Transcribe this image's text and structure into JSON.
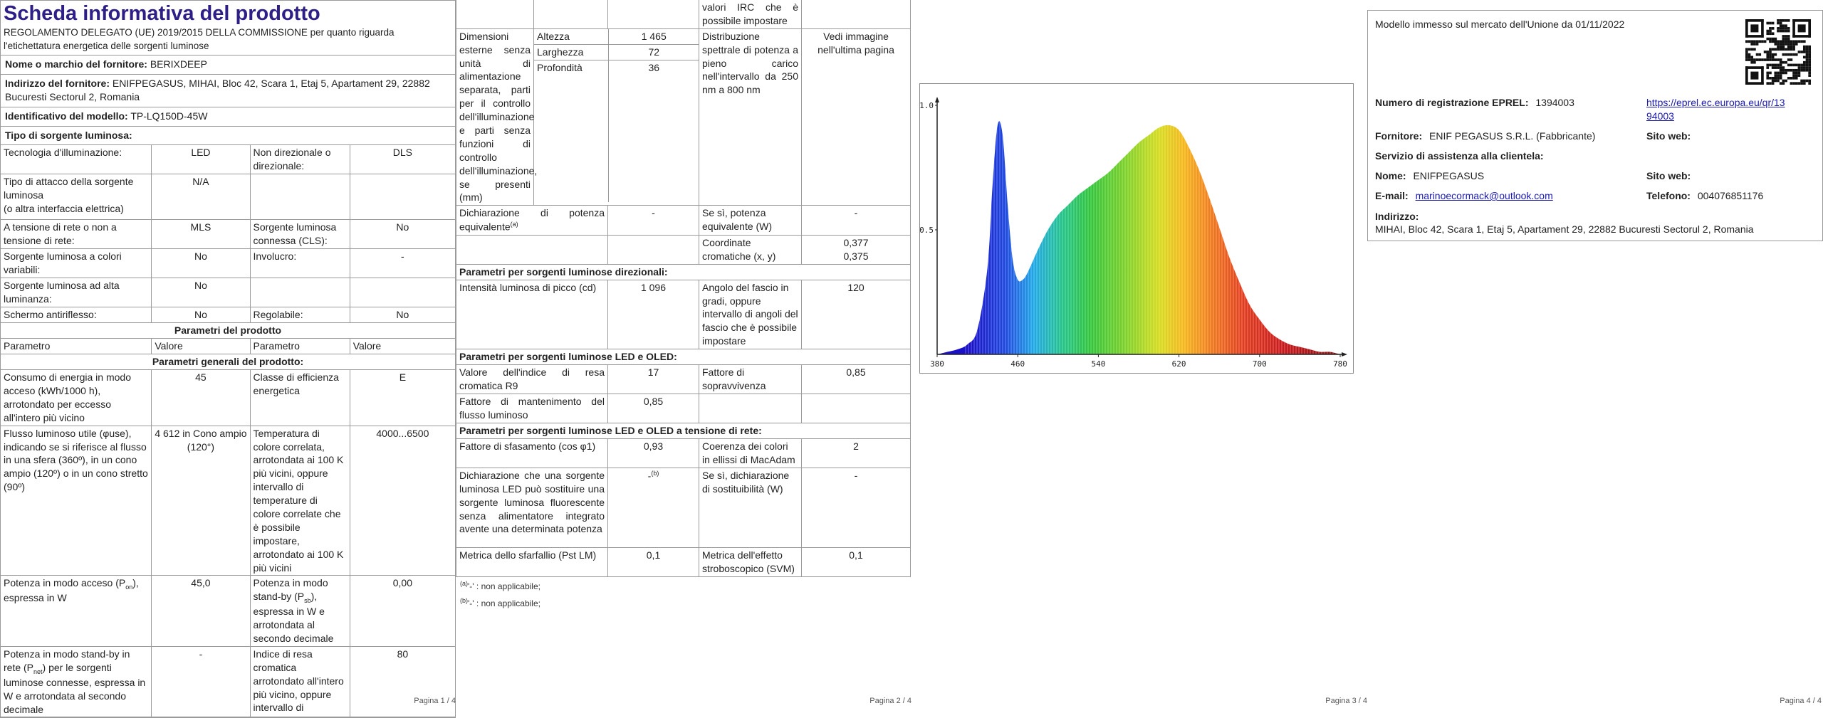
{
  "p1": {
    "title": "Scheda informativa del prodotto",
    "regulation": "REGOLAMENTO DELEGATO (UE) 2019/2015 DELLA COMMISSIONE per quanto riguarda l'etichettatura energetica delle sorgenti luminose",
    "supplier_name_label": "Nome o marchio del fornitore:",
    "supplier_name": "BERIXDEEP",
    "supplier_address_label": "Indirizzo del fornitore:",
    "supplier_address": "ENIFPEGASUS, MIHAI, Bloc 42, Scara 1, Etaj 5, Apartament 29, 22882 Bucuresti Sectorul 2, Romania",
    "model_id_label": "Identificativo del modello:",
    "model_id": "TP-LQ150D-45W",
    "source_type_label": "Tipo di sorgente luminosa:",
    "tech_label": "Tecnologia d'illuminazione:",
    "tech_value": "LED",
    "nondir_label": "Non direzionale o direzionale:",
    "nondir_value": "DLS",
    "cap_label_a": "Tipo di attacco della sorgente luminosa",
    "cap_label_b": "(o altra interfaccia elettrica)",
    "cap_value": "N/A",
    "mains_label": "A tensione di rete o non a tensione di rete:",
    "mains_value": "MLS",
    "cls_label": "Sorgente luminosa connessa (CLS):",
    "cls_value": "No",
    "colour_label": "Sorgente luminosa a colori variabili:",
    "colour_value": "No",
    "envelope_label": "Involucro:",
    "envelope_value": "-",
    "hl_label": "Sorgente luminosa ad alta luminanza:",
    "hl_value": "No",
    "glare_label": "Schermo antiriflesso:",
    "glare_value": "No",
    "dimmable_label": "Regolabile:",
    "dimmable_value": "No",
    "product_params_header": "Parametri del prodotto",
    "col_param": "Parametro",
    "col_value": "Valore",
    "general_header": "Parametri generali del prodotto:",
    "energy_label": "Consumo di energia in modo acceso (kWh/1000 h), arrotondato per eccesso all'intero più vicino",
    "energy_value": "45",
    "eclass_label": "Classe di efficienza energetica",
    "eclass_value": "E",
    "flux_label": "Flusso luminoso utile (φuse), indicando se si riferisce al flusso in una sfera (360º), in un cono ampio (120º) o in un cono stretto (90º)",
    "flux_value": "4 612 in Cono ampio (120°)",
    "cct_label": "Temperatura di colore correlata, arrotondata ai 100 K più vicini, oppure intervallo di temperature di colore correlate che è possibile impostare, arrotondato ai 100 K più vicini",
    "cct_value": "4000...6500",
    "pon_label_a": "Potenza in modo acceso (P",
    "pon_sub": "on",
    "pon_label_b": "), espressa in W",
    "pon_value": "45,0",
    "psb_label_a": "Potenza in modo stand-by (P",
    "psb_sub": "sb",
    "psb_label_b": "), espressa in W e arrotondata al secondo decimale",
    "psb_value": "0,00",
    "pnet_label_a": "Potenza in modo stand-by in rete (P",
    "pnet_sub": "net",
    "pnet_label_b": ") per le sorgenti luminose connesse, espressa in W e arrotondata al secondo decimale",
    "pnet_value": "-",
    "cri_label": "Indice di resa cromatica arrotondato all'intero più vicino, oppure intervallo di",
    "cri_value": "80",
    "pagenum": "Pagina 1 / 4"
  },
  "p2": {
    "cont_text": "valori IRC che è possibile impostare",
    "dim_label": "Dimensioni esterne senza unità di alimentazione separata, parti per il controllo dell'illuminazione e parti senza funzioni di controllo dell'illuminazione, se presenti (mm)",
    "height_label": "Altezza",
    "height_value": "1 465",
    "width_label": "Larghezza",
    "width_value": "72",
    "depth_label": "Profondità",
    "depth_value": "36",
    "spd_label": "Distribuzione spettrale di potenza a pieno carico nell'intervallo da 250 nm a 800 nm",
    "spd_value": "Vedi immagine nell'ultima pagina",
    "eqpow_label": "Dichiarazione di potenza equivalente",
    "eqpow_sup": "(a)",
    "eqpow_value": "-",
    "eqpow_yes_label": "Se sì, potenza equivalente (W)",
    "eqpow_yes_value": "-",
    "chroma_label": "Coordinate cromatiche (x, y)",
    "chroma_x": "0,377",
    "chroma_y": "0,375",
    "dir_header": "Parametri per sorgenti luminose direzionali:",
    "peak_label": "Intensità luminosa di picco (cd)",
    "peak_value": "1 096",
    "beam_label": "Angolo del fascio in gradi, oppure intervallo di angoli del fascio che è possibile impostare",
    "beam_value": "120",
    "led_header": "Parametri per sorgenti luminose LED e OLED:",
    "r9_label": "Valore dell'indice di resa cromatica R9",
    "r9_value": "17",
    "surv_label": "Fattore di sopravvivenza",
    "surv_value": "0,85",
    "maint_label": "Fattore di mantenimento del flusso luminoso",
    "maint_value": "0,85",
    "mains_header": "Parametri per sorgenti luminose LED e OLED a tensione di rete:",
    "pf_label": "Fattore di sfasamento (cos φ1)",
    "pf_value": "0,93",
    "macadam_label": "Coerenza dei colori in ellissi di MacAdam",
    "macadam_value": "2",
    "repl_label": "Dichiarazione che una sorgente luminosa LED può sostituire una sorgente luminosa fluorescente senza alimentatore integrato avente una determinata potenza",
    "repl_value": "-",
    "repl_sup": "(b)",
    "repl_yes_label": "Se sì, dichiarazione di sostituibilità (W)",
    "repl_yes_value": "-",
    "flicker_label": "Metrica dello sfarfallio (Pst LM)",
    "flicker_value": "0,1",
    "svm_label": "Metrica dell'effetto stroboscopico (SVM)",
    "svm_value": "0,1",
    "fn_a_sup": "(a)",
    "fn_a_text": "'-' : non applicabile;",
    "fn_b_sup": "(b)",
    "fn_b_text": "'-' : non applicabile;",
    "pagenum": "Pagina 2 / 4"
  },
  "p3": {
    "pagenum": "Pagina 3 / 4",
    "chart_data": {
      "type": "area",
      "xlabel": "",
      "ylabel": "",
      "xlim": [
        380,
        780
      ],
      "ylim": [
        0,
        1.0
      ],
      "x_ticks": [
        "380",
        "460",
        "540",
        "620",
        "700",
        "780"
      ],
      "y_ticks": [
        "0.5",
        "1.0"
      ],
      "x": [
        380,
        390,
        400,
        410,
        420,
        430,
        435,
        440,
        445,
        450,
        455,
        460,
        465,
        470,
        480,
        490,
        500,
        510,
        520,
        530,
        540,
        550,
        560,
        570,
        580,
        590,
        600,
        610,
        620,
        630,
        640,
        650,
        660,
        670,
        680,
        690,
        700,
        710,
        720,
        730,
        740,
        750,
        760,
        770,
        780
      ],
      "y": [
        0.0,
        0.01,
        0.02,
        0.04,
        0.1,
        0.35,
        0.68,
        0.92,
        0.88,
        0.6,
        0.38,
        0.3,
        0.3,
        0.33,
        0.42,
        0.5,
        0.56,
        0.6,
        0.64,
        0.67,
        0.7,
        0.73,
        0.77,
        0.81,
        0.85,
        0.88,
        0.91,
        0.92,
        0.9,
        0.83,
        0.74,
        0.63,
        0.51,
        0.39,
        0.29,
        0.2,
        0.14,
        0.09,
        0.06,
        0.04,
        0.03,
        0.02,
        0.01,
        0.01,
        0.0
      ]
    }
  },
  "p4": {
    "market_text": "Modello immesso sul mercato dell'Unione da 01/11/2022",
    "eprel_label": "Numero di registrazione EPREL:",
    "eprel_value": "1394003",
    "eprel_link_1": "https://eprel.ec.europa.eu/qr/13",
    "eprel_link_2": "94003",
    "supplier_label": "Fornitore:",
    "supplier_value": "ENIF PEGASUS S.R.L. (Fabbricante)",
    "website_label": "Sito web:",
    "service_label": "Servizio di assistenza alla clientela:",
    "name_label": "Nome:",
    "name_value": "ENIFPEGASUS",
    "website2_label": "Sito web:",
    "email_label": "E-mail:",
    "email_value": "marinoecormack@outlook.com",
    "phone_label": "Telefono:",
    "phone_value": "004076851176",
    "address_label": "Indirizzo:",
    "address_value": "MIHAI, Bloc 42, Scara 1, Etaj 5, Apartament 29, 22882 Bucuresti Sectorul 2, Romania",
    "pagenum": "Pagina 4 / 4"
  }
}
